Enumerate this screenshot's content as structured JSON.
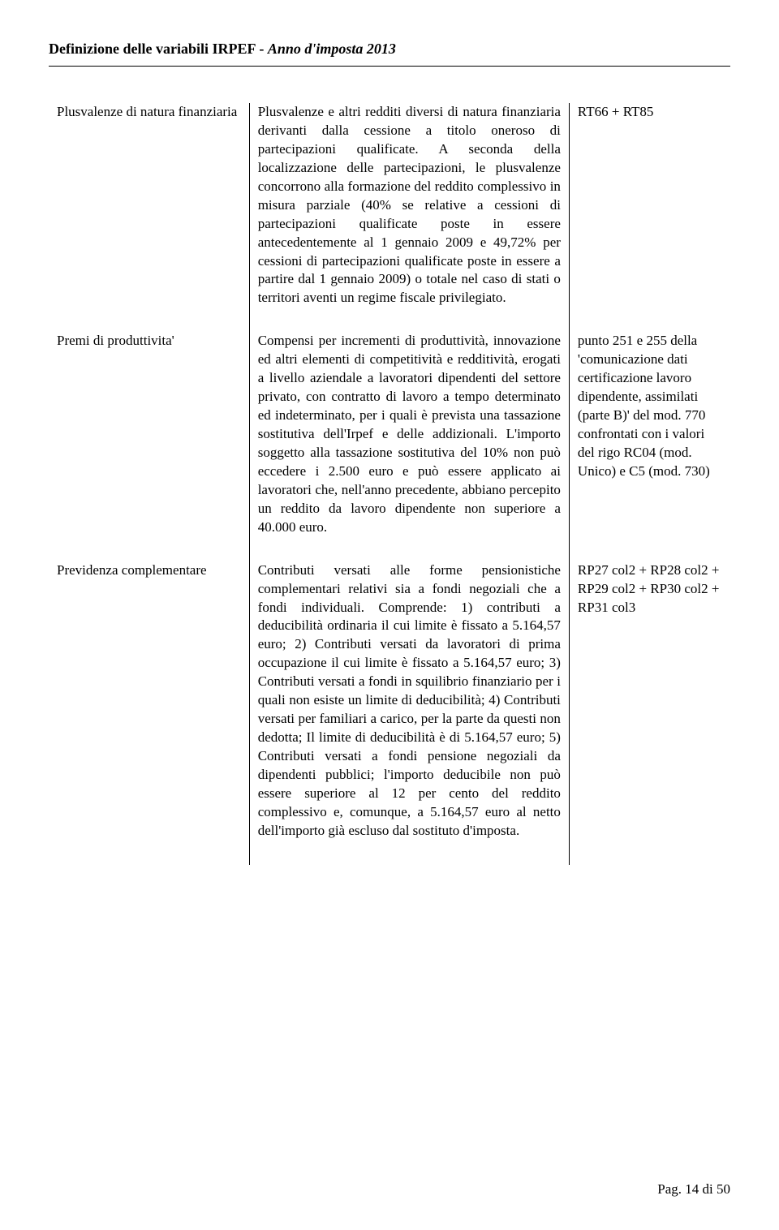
{
  "header": {
    "title_bold": "Definizione delle variabili IRPEF - ",
    "title_italic": "Anno d'imposta 2013"
  },
  "rows": [
    {
      "name": "Plusvalenze di natura finanziaria",
      "desc": "Plusvalenze e altri redditi diversi di natura finanziaria derivanti dalla cessione a titolo oneroso di partecipazioni qualificate. A seconda della localizzazione delle partecipazioni, le plusvalenze concorrono alla formazione del reddito complessivo in misura parziale (40% se relative a cessioni di partecipazioni qualificate poste in essere antecedentemente al 1 gennaio 2009 e 49,72% per cessioni di partecipazioni qualificate poste in essere a partire dal 1 gennaio 2009) o totale nel caso di stati o territori aventi un regime fiscale privilegiato.",
      "ref": "RT66 + RT85"
    },
    {
      "name": "Premi di produttivita'",
      "desc": "Compensi per incrementi di produttività, innovazione ed altri elementi di competitività e redditività, erogati a livello aziendale a lavoratori dipendenti del settore privato, con contratto di lavoro a tempo determinato ed indeterminato, per i quali è prevista una tassazione sostitutiva dell'Irpef e delle addizionali. L'importo soggetto alla tassazione sostitutiva del 10% non può eccedere i 2.500 euro e può essere applicato ai lavoratori che, nell'anno precedente, abbiano percepito un reddito da lavoro dipendente non superiore a 40.000 euro.",
      "ref": "punto 251 e 255 della 'comunicazione dati certificazione lavoro dipendente, assimilati (parte B)' del mod. 770\nconfrontati con i valori del rigo RC04 (mod. Unico) e C5 (mod. 730)"
    },
    {
      "name": "Previdenza complementare",
      "desc": "Contributi versati alle forme pensionistiche complementari relativi sia a fondi negoziali che a fondi individuali. Comprende:\n1) contributi a deducibilità ordinaria il cui limite è fissato a 5.164,57 euro;\n2) Contributi versati da lavoratori di prima occupazione il cui limite è fissato a 5.164,57 euro;\n3) Contributi versati a fondi in squilibrio finanziario per i quali non esiste un limite di deducibilità;\n4) Contributi versati per familiari a carico, per la parte da questi non dedotta; Il limite di deducibilità è di 5.164,57 euro; 5) Contributi versati a fondi pensione negoziali da dipendenti pubblici; l'importo deducibile non può essere superiore al 12 per cento del reddito complessivo e, comunque, a 5.164,57 euro al netto dell'importo già escluso dal sostituto d'imposta.",
      "ref": "RP27 col2 + RP28 col2 + RP29 col2 + RP30 col2 + RP31 col3"
    }
  ],
  "footer": {
    "label": "Pag. 14 di 50"
  }
}
